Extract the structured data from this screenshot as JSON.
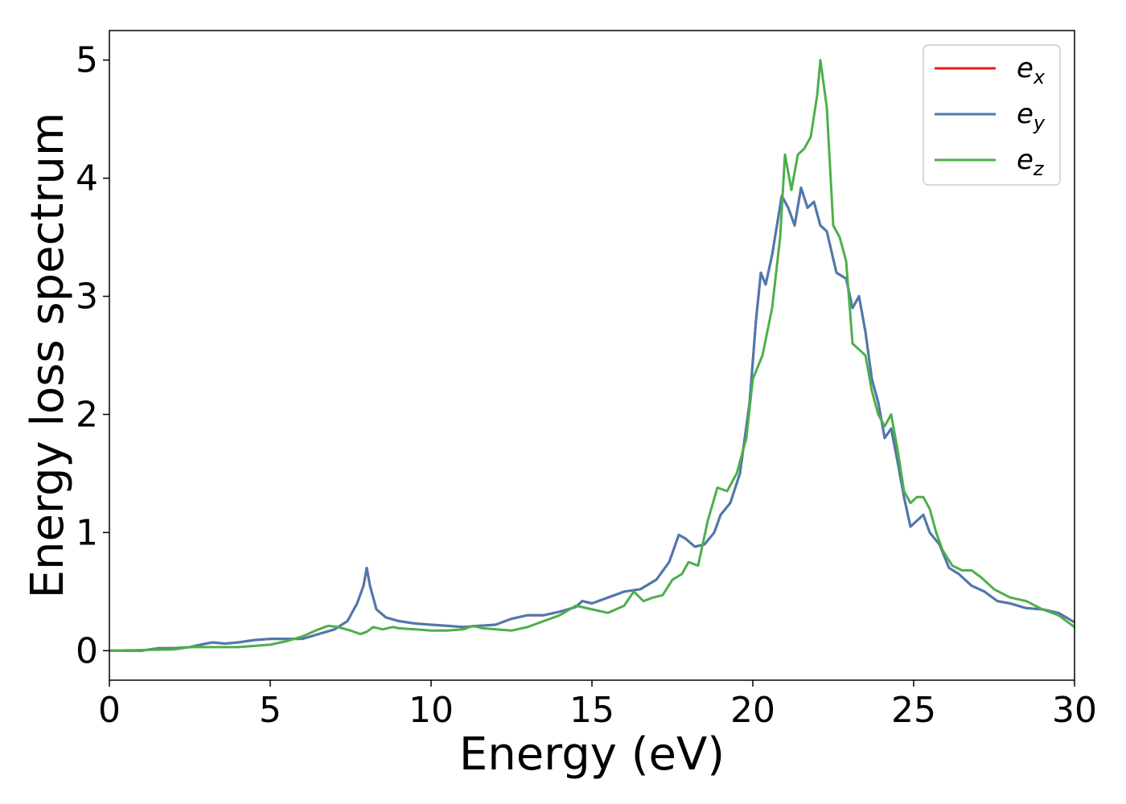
{
  "chart_data": {
    "type": "line",
    "xlabel": "Energy (eV)",
    "ylabel": "Energy loss spectrum",
    "xlim": [
      0,
      30
    ],
    "ylim": [
      -0.25,
      5.25
    ],
    "xticks": [
      "0",
      "5",
      "10",
      "15",
      "20",
      "25",
      "30"
    ],
    "yticks": [
      "0",
      "1",
      "2",
      "3",
      "4",
      "5"
    ],
    "grid": false,
    "legend_position": "top-right",
    "series": [
      {
        "name": "e",
        "subscript": "x",
        "color": "#e41a1c",
        "x": [
          0,
          1,
          1.5,
          2,
          2.5,
          3,
          3.2,
          3.6,
          4,
          4.5,
          5,
          5.5,
          6,
          6.5,
          7,
          7.4,
          7.7,
          7.9,
          8,
          8.1,
          8.3,
          8.6,
          9,
          9.5,
          10,
          10.5,
          11,
          11.5,
          12,
          12.5,
          13,
          13.5,
          14,
          14.5,
          14.7,
          15,
          15.5,
          16,
          16.5,
          17,
          17.4,
          17.7,
          17.9,
          18.2,
          18.5,
          18.8,
          19,
          19.3,
          19.6,
          19.9,
          20.1,
          20.25,
          20.4,
          20.6,
          20.9,
          21.1,
          21.3,
          21.5,
          21.7,
          21.9,
          22.1,
          22.3,
          22.6,
          22.9,
          23.1,
          23.3,
          23.5,
          23.7,
          23.9,
          24.1,
          24.3,
          24.5,
          24.7,
          24.9,
          25.1,
          25.3,
          25.5,
          25.8,
          26.1,
          26.4,
          26.8,
          27.2,
          27.6,
          28,
          28.5,
          29,
          29.5,
          30
        ],
        "y": [
          0,
          0,
          0.02,
          0.02,
          0.03,
          0.06,
          0.07,
          0.06,
          0.07,
          0.09,
          0.1,
          0.1,
          0.1,
          0.14,
          0.18,
          0.25,
          0.4,
          0.55,
          0.7,
          0.55,
          0.35,
          0.28,
          0.25,
          0.23,
          0.22,
          0.21,
          0.2,
          0.21,
          0.22,
          0.27,
          0.3,
          0.3,
          0.33,
          0.37,
          0.42,
          0.4,
          0.45,
          0.5,
          0.52,
          0.6,
          0.75,
          0.98,
          0.95,
          0.88,
          0.9,
          1.0,
          1.15,
          1.25,
          1.5,
          2.1,
          2.8,
          3.2,
          3.1,
          3.35,
          3.85,
          3.75,
          3.6,
          3.92,
          3.75,
          3.8,
          3.6,
          3.55,
          3.2,
          3.15,
          2.9,
          3.0,
          2.7,
          2.3,
          2.1,
          1.8,
          1.88,
          1.6,
          1.3,
          1.05,
          1.1,
          1.15,
          1.0,
          0.9,
          0.7,
          0.65,
          0.55,
          0.5,
          0.42,
          0.4,
          0.36,
          0.35,
          0.32,
          0.24
        ]
      },
      {
        "name": "e",
        "subscript": "y",
        "color": "#4a7ab0",
        "x": [
          0,
          1,
          1.5,
          2,
          2.5,
          3,
          3.2,
          3.6,
          4,
          4.5,
          5,
          5.5,
          6,
          6.5,
          7,
          7.4,
          7.7,
          7.9,
          8,
          8.1,
          8.3,
          8.6,
          9,
          9.5,
          10,
          10.5,
          11,
          11.5,
          12,
          12.5,
          13,
          13.5,
          14,
          14.5,
          14.7,
          15,
          15.5,
          16,
          16.5,
          17,
          17.4,
          17.7,
          17.9,
          18.2,
          18.5,
          18.8,
          19,
          19.3,
          19.6,
          19.9,
          20.1,
          20.25,
          20.4,
          20.6,
          20.9,
          21.1,
          21.3,
          21.5,
          21.7,
          21.9,
          22.1,
          22.3,
          22.6,
          22.9,
          23.1,
          23.3,
          23.5,
          23.7,
          23.9,
          24.1,
          24.3,
          24.5,
          24.7,
          24.9,
          25.1,
          25.3,
          25.5,
          25.8,
          26.1,
          26.4,
          26.8,
          27.2,
          27.6,
          28,
          28.5,
          29,
          29.5,
          30
        ],
        "y": [
          0,
          0,
          0.02,
          0.02,
          0.03,
          0.06,
          0.07,
          0.06,
          0.07,
          0.09,
          0.1,
          0.1,
          0.1,
          0.14,
          0.18,
          0.25,
          0.4,
          0.55,
          0.7,
          0.55,
          0.35,
          0.28,
          0.25,
          0.23,
          0.22,
          0.21,
          0.2,
          0.21,
          0.22,
          0.27,
          0.3,
          0.3,
          0.33,
          0.37,
          0.42,
          0.4,
          0.45,
          0.5,
          0.52,
          0.6,
          0.75,
          0.98,
          0.95,
          0.88,
          0.9,
          1.0,
          1.15,
          1.25,
          1.5,
          2.1,
          2.8,
          3.2,
          3.1,
          3.35,
          3.85,
          3.75,
          3.6,
          3.92,
          3.75,
          3.8,
          3.6,
          3.55,
          3.2,
          3.15,
          2.9,
          3.0,
          2.7,
          2.3,
          2.1,
          1.8,
          1.88,
          1.6,
          1.3,
          1.05,
          1.1,
          1.15,
          1.0,
          0.9,
          0.7,
          0.65,
          0.55,
          0.5,
          0.42,
          0.4,
          0.36,
          0.35,
          0.32,
          0.24
        ]
      },
      {
        "name": "e",
        "subscript": "z",
        "color": "#4daf4a",
        "x": [
          0,
          2,
          2.5,
          3,
          4,
          5,
          5.5,
          6,
          6.5,
          6.8,
          7.1,
          7.5,
          7.8,
          8,
          8.2,
          8.5,
          8.8,
          9,
          9.5,
          10,
          10.5,
          11,
          11.3,
          11.6,
          12,
          12.5,
          13,
          13.5,
          14,
          14.5,
          15,
          15.5,
          16,
          16.3,
          16.6,
          16.9,
          17.2,
          17.5,
          17.8,
          18,
          18.3,
          18.6,
          18.9,
          19.2,
          19.5,
          19.8,
          20,
          20.3,
          20.6,
          20.85,
          21,
          21.2,
          21.4,
          21.6,
          21.8,
          22,
          22.1,
          22.3,
          22.5,
          22.7,
          22.9,
          23.1,
          23.3,
          23.5,
          23.7,
          23.9,
          24.1,
          24.3,
          24.5,
          24.7,
          24.9,
          25.1,
          25.3,
          25.5,
          25.7,
          25.9,
          26.2,
          26.5,
          26.8,
          27.1,
          27.5,
          28,
          28.5,
          29,
          29.5,
          30
        ],
        "y": [
          0,
          0.01,
          0.03,
          0.03,
          0.03,
          0.05,
          0.08,
          0.12,
          0.18,
          0.21,
          0.2,
          0.17,
          0.14,
          0.16,
          0.2,
          0.18,
          0.2,
          0.19,
          0.18,
          0.17,
          0.17,
          0.18,
          0.21,
          0.19,
          0.18,
          0.17,
          0.2,
          0.25,
          0.3,
          0.38,
          0.35,
          0.32,
          0.38,
          0.5,
          0.42,
          0.45,
          0.47,
          0.6,
          0.65,
          0.75,
          0.72,
          1.1,
          1.38,
          1.35,
          1.5,
          1.8,
          2.3,
          2.5,
          2.9,
          3.5,
          4.2,
          3.9,
          4.2,
          4.25,
          4.35,
          4.7,
          5.0,
          4.6,
          3.6,
          3.5,
          3.3,
          2.6,
          2.55,
          2.5,
          2.2,
          2.0,
          1.9,
          2.0,
          1.7,
          1.35,
          1.25,
          1.3,
          1.3,
          1.2,
          1.0,
          0.85,
          0.72,
          0.68,
          0.68,
          0.62,
          0.52,
          0.45,
          0.42,
          0.35,
          0.3,
          0.2
        ]
      }
    ]
  }
}
